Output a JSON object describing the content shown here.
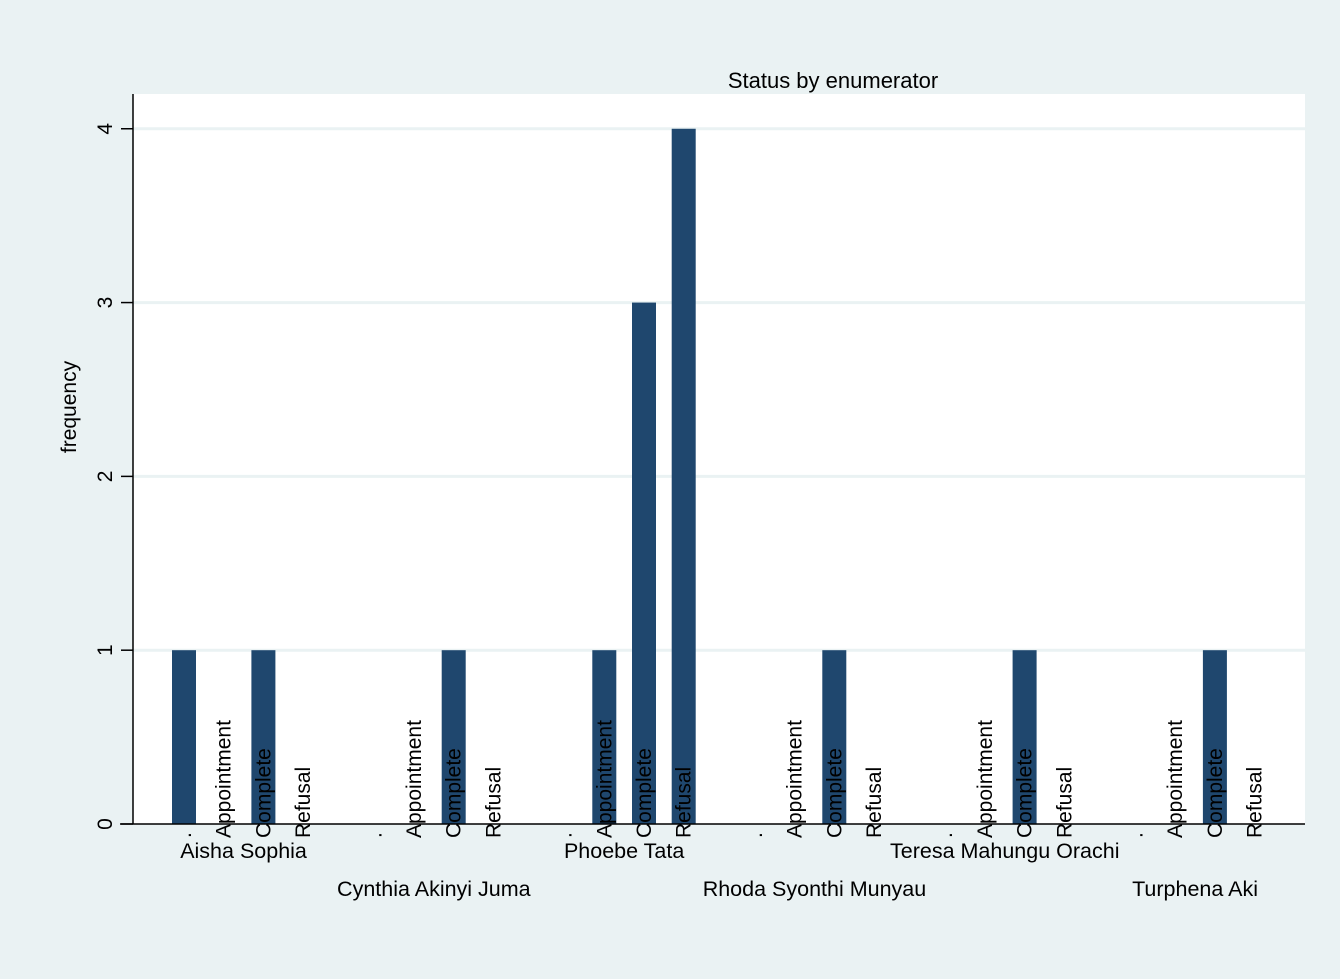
{
  "chart_data": {
    "type": "bar",
    "title": "Status by enumerator",
    "ylabel": "frequency",
    "xlabel": "",
    "ylim": [
      0,
      4.2
    ],
    "yticks": [
      0,
      1,
      2,
      3,
      4
    ],
    "grid": true,
    "legend": "none",
    "colors": {
      "bar": "#1f476e",
      "plot_bg": "#ffffff",
      "outer_bg": "#eaf2f3",
      "grid": "#eaf2f3"
    },
    "categories": [
      ".",
      "Appointment",
      "Complete",
      "Refusal"
    ],
    "groups": [
      {
        "name": "Aisha Sophia",
        "values": [
          1,
          0,
          1,
          0
        ]
      },
      {
        "name": "Cynthia Akinyi Juma",
        "values": [
          0,
          0,
          1,
          0
        ]
      },
      {
        "name": "Phoebe Tata",
        "values": [
          0,
          1,
          3,
          4
        ]
      },
      {
        "name": "Rhoda Syonthi Munyau",
        "values": [
          0,
          0,
          1,
          0
        ]
      },
      {
        "name": "Teresa Mahungu Orachi",
        "values": [
          0,
          0,
          1,
          0
        ]
      },
      {
        "name": "Turphena Aki",
        "values": [
          0,
          0,
          1,
          0
        ]
      }
    ]
  }
}
